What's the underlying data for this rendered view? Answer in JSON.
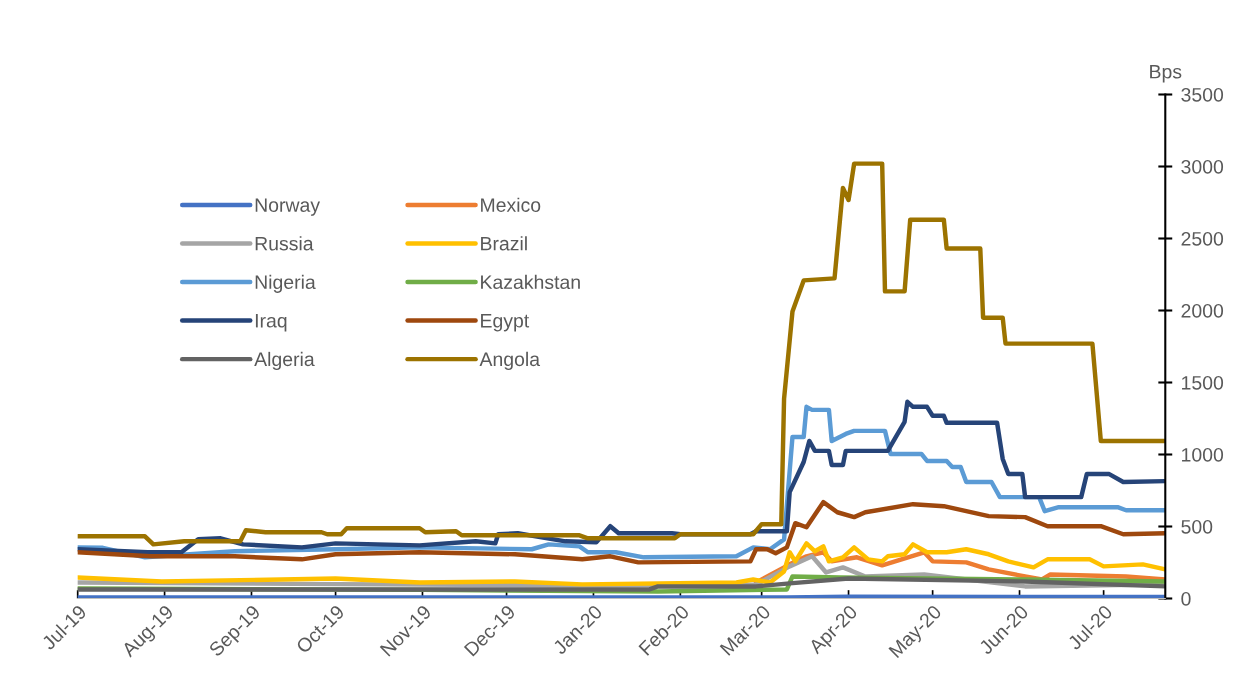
{
  "chart_data": {
    "type": "line",
    "ylabel": "Bps",
    "xlim": [
      "2019-07-01",
      "2020-07-23"
    ],
    "xticks": [
      {
        "value": "2019-07-01",
        "label": "Jul-19"
      },
      {
        "value": "2019-08-01",
        "label": "Aug-19"
      },
      {
        "value": "2019-09-01",
        "label": "Sep-19"
      },
      {
        "value": "2019-10-01",
        "label": "Oct-19"
      },
      {
        "value": "2019-11-01",
        "label": "Nov-19"
      },
      {
        "value": "2019-12-01",
        "label": "Dec-19"
      },
      {
        "value": "2020-01-01",
        "label": "Jan-20"
      },
      {
        "value": "2020-02-01",
        "label": "Feb-20"
      },
      {
        "value": "2020-03-01",
        "label": "Mar-20"
      },
      {
        "value": "2020-04-01",
        "label": "Apr-20"
      },
      {
        "value": "2020-05-01",
        "label": "May-20"
      },
      {
        "value": "2020-06-01",
        "label": "Jun-20"
      },
      {
        "value": "2020-07-01",
        "label": "Jul-20"
      }
    ],
    "ylim": [
      0,
      3500
    ],
    "yticks": [
      0,
      500,
      1000,
      1500,
      2000,
      2500,
      3000,
      3500
    ],
    "grid": false,
    "legend": "top left",
    "marker": "none",
    "line_style": "solid",
    "series": [
      {
        "name": "Norway",
        "color": "#4472c4",
        "x": [
          "2019-07-01",
          "2019-11-01",
          "2020-03-10",
          "2020-04-01",
          "2020-07-23"
        ],
        "values": [
          8,
          8,
          8,
          12,
          10
        ]
      },
      {
        "name": "Mexico",
        "color": "#ed7d31",
        "x": [
          "2020-02-28",
          "2020-03-11",
          "2020-03-17",
          "2020-03-23",
          "2020-03-26",
          "2020-04-04",
          "2020-04-13",
          "2020-04-28",
          "2020-05-01",
          "2020-05-13",
          "2020-05-21",
          "2020-06-03",
          "2020-06-09",
          "2020-06-12",
          "2020-07-09",
          "2020-07-23"
        ],
        "values": [
          111,
          237,
          293,
          321,
          258,
          286,
          230,
          321,
          258,
          251,
          202,
          153,
          132,
          167,
          153,
          132
        ]
      },
      {
        "name": "Russia",
        "color": "#a5a5a5",
        "x": [
          "2019-07-01",
          "2019-10-01",
          "2020-01-01",
          "2020-02-28",
          "2020-03-11",
          "2020-03-19",
          "2020-03-24",
          "2020-03-30",
          "2020-04-07",
          "2020-04-28",
          "2020-06-03",
          "2020-07-23"
        ],
        "values": [
          111,
          100,
          90,
          98,
          223,
          293,
          181,
          216,
          153,
          167,
          84,
          98
        ]
      },
      {
        "name": "Brazil",
        "color": "#ffc000",
        "x": [
          "2019-07-01",
          "2019-07-31",
          "2019-10-01",
          "2019-10-31",
          "2019-12-04",
          "2019-12-28",
          "2020-02-21",
          "2020-02-27",
          "2020-03-04",
          "2020-03-09",
          "2020-03-11",
          "2020-03-13",
          "2020-03-17",
          "2020-03-20",
          "2020-03-23",
          "2020-03-25",
          "2020-03-30",
          "2020-04-03",
          "2020-04-08",
          "2020-04-13",
          "2020-04-15",
          "2020-04-21",
          "2020-04-24",
          "2020-04-29",
          "2020-05-06",
          "2020-05-13",
          "2020-05-21",
          "2020-05-28",
          "2020-06-06",
          "2020-06-11",
          "2020-06-26",
          "2020-07-01",
          "2020-07-15",
          "2020-07-23"
        ],
        "values": [
          146,
          118,
          139,
          111,
          118,
          98,
          111,
          132,
          111,
          188,
          321,
          258,
          383,
          328,
          362,
          258,
          286,
          355,
          272,
          258,
          293,
          307,
          376,
          321,
          321,
          342,
          307,
          258,
          216,
          272,
          272,
          223,
          237,
          202
        ]
      },
      {
        "name": "Nigeria",
        "color": "#5b9bd5",
        "x": [
          "2019-07-01",
          "2019-07-10",
          "2019-07-25",
          "2019-08-26",
          "2019-10-01",
          "2019-10-31",
          "2019-12-10",
          "2019-12-16",
          "2019-12-27",
          "2019-12-30",
          "2020-01-09",
          "2020-01-19",
          "2020-02-21",
          "2020-02-27",
          "2020-03-04",
          "2020-03-09",
          "2020-03-12",
          "2020-03-16",
          "2020-03-17",
          "2020-03-19",
          "2020-03-25",
          "2020-03-26",
          "2020-03-31",
          "2020-04-03",
          "2020-04-14",
          "2020-04-16",
          "2020-04-27",
          "2020-04-29",
          "2020-05-06",
          "2020-05-08",
          "2020-05-11",
          "2020-05-13",
          "2020-05-22",
          "2020-05-25",
          "2020-06-08",
          "2020-06-10",
          "2020-06-15",
          "2020-07-06",
          "2020-07-09",
          "2020-07-23"
        ],
        "values": [
          355,
          352,
          286,
          328,
          342,
          355,
          342,
          376,
          362,
          321,
          321,
          286,
          293,
          355,
          342,
          411,
          1122,
          1122,
          1331,
          1310,
          1310,
          1094,
          1143,
          1164,
          1164,
          1004,
          1004,
          955,
          955,
          913,
          913,
          809,
          809,
          704,
          704,
          606,
          634,
          634,
          613,
          613
        ]
      },
      {
        "name": "Kazakhstan",
        "color": "#70ad47",
        "x": [
          "2019-07-01",
          "2019-11-01",
          "2020-01-24",
          "2020-03-10",
          "2020-03-12",
          "2020-03-29",
          "2020-06-03",
          "2020-07-23"
        ],
        "values": [
          70,
          60,
          49,
          63,
          153,
          146,
          132,
          118
        ]
      },
      {
        "name": "Iraq",
        "color": "#264478",
        "x": [
          "2019-07-01",
          "2019-07-26",
          "2019-08-07",
          "2019-08-13",
          "2019-08-21",
          "2019-08-29",
          "2019-09-19",
          "2019-10-01",
          "2019-10-31",
          "2019-11-20",
          "2019-11-27",
          "2019-11-28",
          "2019-12-05",
          "2019-12-22",
          "2020-01-02",
          "2020-01-07",
          "2020-01-10",
          "2020-01-29",
          "2020-02-01",
          "2020-02-26",
          "2020-02-28",
          "2020-03-10",
          "2020-03-11",
          "2020-03-16",
          "2020-03-18",
          "2020-03-20",
          "2020-03-25",
          "2020-03-26",
          "2020-03-30",
          "2020-03-31",
          "2020-04-15",
          "2020-04-21",
          "2020-04-22",
          "2020-04-24",
          "2020-04-29",
          "2020-05-01",
          "2020-05-05",
          "2020-05-06",
          "2020-05-24",
          "2020-05-26",
          "2020-05-28",
          "2020-06-02",
          "2020-06-03",
          "2020-06-23",
          "2020-06-25",
          "2020-07-03",
          "2020-07-08",
          "2020-07-23"
        ],
        "values": [
          342,
          321,
          321,
          411,
          418,
          376,
          355,
          383,
          369,
          397,
          383,
          446,
          453,
          397,
          390,
          502,
          453,
          453,
          446,
          446,
          467,
          467,
          739,
          948,
          1094,
          1025,
          1025,
          927,
          927,
          1025,
          1025,
          1227,
          1366,
          1331,
          1331,
          1269,
          1269,
          1220,
          1220,
          969,
          864,
          864,
          704,
          704,
          864,
          864,
          809,
          815
        ]
      },
      {
        "name": "Egypt",
        "color": "#9e480e",
        "x": [
          "2019-07-01",
          "2019-07-27",
          "2019-08-26",
          "2019-09-19",
          "2019-10-01",
          "2019-10-31",
          "2019-12-04",
          "2019-12-28",
          "2020-01-07",
          "2020-01-17",
          "2020-02-26",
          "2020-02-28",
          "2020-03-03",
          "2020-03-06",
          "2020-03-10",
          "2020-03-13",
          "2020-03-17",
          "2020-03-23",
          "2020-03-28",
          "2020-04-03",
          "2020-04-07",
          "2020-04-24",
          "2020-05-05",
          "2020-05-21",
          "2020-06-03",
          "2020-06-11",
          "2020-06-30",
          "2020-07-08",
          "2020-07-23"
        ],
        "values": [
          321,
          293,
          293,
          272,
          307,
          321,
          307,
          272,
          293,
          251,
          258,
          342,
          342,
          314,
          355,
          523,
          495,
          669,
          599,
          565,
          599,
          655,
          641,
          572,
          565,
          502,
          502,
          446,
          453
        ]
      },
      {
        "name": "Algeria",
        "color": "#636363",
        "x": [
          "2019-07-01",
          "2020-01-21",
          "2020-01-24",
          "2020-02-28",
          "2020-03-11",
          "2020-04-01",
          "2020-06-03",
          "2020-07-23"
        ],
        "values": [
          63,
          63,
          84,
          84,
          105,
          139,
          118,
          84
        ]
      },
      {
        "name": "Angola",
        "color": "#9c7300",
        "x": [
          "2019-07-01",
          "2019-07-25",
          "2019-07-28",
          "2019-08-08",
          "2019-08-28",
          "2019-08-30",
          "2019-09-06",
          "2019-09-26",
          "2019-09-28",
          "2019-10-03",
          "2019-10-05",
          "2019-10-31",
          "2019-11-02",
          "2019-11-13",
          "2019-11-15",
          "2019-12-27",
          "2019-12-30",
          "2020-01-30",
          "2020-02-01",
          "2020-02-27",
          "2020-03-01",
          "2020-03-08",
          "2020-03-09",
          "2020-03-12",
          "2020-03-16",
          "2020-03-27",
          "2020-03-30",
          "2020-04-01",
          "2020-04-03",
          "2020-04-13",
          "2020-04-14",
          "2020-04-21",
          "2020-04-23",
          "2020-05-05",
          "2020-05-06",
          "2020-05-18",
          "2020-05-19",
          "2020-05-26",
          "2020-05-27",
          "2020-06-27",
          "2020-06-30",
          "2020-07-23"
        ],
        "values": [
          432,
          432,
          376,
          397,
          397,
          474,
          460,
          460,
          446,
          446,
          488,
          488,
          460,
          467,
          439,
          439,
          418,
          418,
          446,
          446,
          516,
          516,
          1387,
          1993,
          2209,
          2223,
          2851,
          2767,
          3020,
          3020,
          2133,
          2133,
          2630,
          2630,
          2430,
          2430,
          1950,
          1950,
          1770,
          1770,
          1094,
          1094
        ]
      }
    ]
  }
}
